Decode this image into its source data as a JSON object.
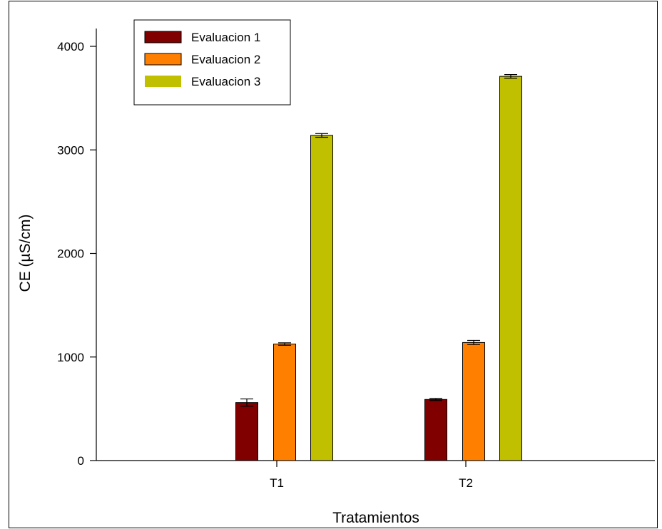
{
  "chart_data": {
    "type": "bar",
    "categories": [
      "T1",
      "T2"
    ],
    "series": [
      {
        "name": "Evaluacion 1",
        "color": "#800000",
        "values": [
          560,
          590
        ],
        "errors": [
          35,
          10
        ]
      },
      {
        "name": "Evaluacion 2",
        "color": "#ff8000",
        "values": [
          1125,
          1140
        ],
        "errors": [
          12,
          20
        ]
      },
      {
        "name": "Evaluacion 3",
        "color": "#c0c000",
        "values": [
          3140,
          3710
        ],
        "errors": [
          18,
          17
        ]
      }
    ],
    "xlabel": "Tratamientos",
    "ylabel": "CE  (µS/cm)",
    "ylim": [
      0,
      4000
    ],
    "yticks": [
      0,
      1000,
      2000,
      3000,
      4000
    ],
    "grid": false,
    "legend_position": "top-left"
  }
}
